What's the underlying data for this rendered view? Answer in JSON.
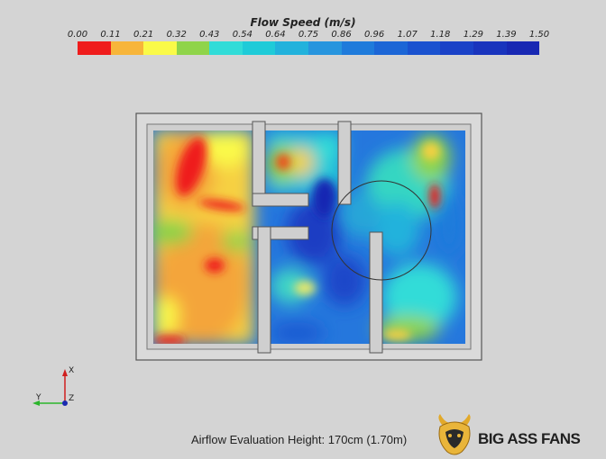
{
  "legend": {
    "title": "Flow Speed (m/s)",
    "ticks": [
      "0.00",
      "0.11",
      "0.21",
      "0.32",
      "0.43",
      "0.54",
      "0.64",
      "0.75",
      "0.86",
      "0.96",
      "1.07",
      "1.18",
      "1.29",
      "1.39",
      "1.50"
    ],
    "colors": [
      "#ef1c1c",
      "#f7b53a",
      "#fafa48",
      "#8fd44a",
      "#31dcd8",
      "#1fcbd8",
      "#22b2dc",
      "#2795de",
      "#1f7bdb",
      "#1c66d6",
      "#1a52cf",
      "#1a42c7",
      "#1934bd",
      "#1828b3"
    ]
  },
  "caption": "Airflow Evaluation Height: 170cm (1.70m)",
  "brand": "BIG ASS FANS",
  "axes": {
    "x_label": "X",
    "y_label": "Y",
    "z_label": "Z"
  }
}
